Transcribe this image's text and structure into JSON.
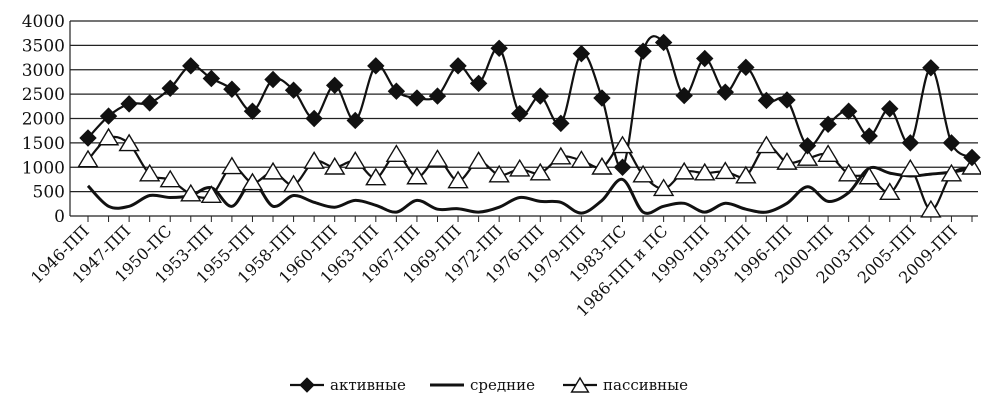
{
  "chart_data": {
    "type": "line",
    "title": "",
    "xlabel": "",
    "ylabel": "",
    "ylim": [
      0,
      4000
    ],
    "yticks": [
      0,
      500,
      1000,
      1500,
      2000,
      2500,
      3000,
      3500,
      4000
    ],
    "grid": "horizontal",
    "legend_position": "bottom",
    "tick_labels": [
      "1946-ПП",
      "1947-ПП",
      "1950-ПС",
      "1953-ПП",
      "1955-ПП",
      "1958-ПП",
      "1960-ПП",
      "1963-ПП",
      "1967-ПП",
      "1969-ПП",
      "1972-ПП",
      "1976-ПП",
      "1979-ПП",
      "1983-ПС",
      "1986-ПП и ПС",
      "1990-ПП",
      "1993-ПП",
      "1996-ПП",
      "2000-ПП",
      "2003-ПП",
      "2005-ПП",
      "2009-ПП"
    ],
    "series": [
      {
        "name": "активные",
        "marker": "diamond",
        "color": "#111111",
        "values": [
          1600,
          2050,
          2300,
          2320,
          2620,
          3080,
          2820,
          2600,
          2150,
          2800,
          2580,
          2000,
          2680,
          1960,
          3080,
          2560,
          2420,
          2460,
          3080,
          2720,
          3440,
          2100,
          2460,
          1900,
          3330,
          2420,
          1000,
          3380,
          3560,
          2470,
          3230,
          2540,
          3050,
          2370,
          2380,
          1440,
          1880,
          2150,
          1640,
          2200,
          1500,
          3040,
          1500,
          1200
        ]
      },
      {
        "name": "средние",
        "marker": "none",
        "color": "#111111",
        "values": [
          620,
          200,
          200,
          420,
          380,
          420,
          580,
          200,
          700,
          200,
          420,
          280,
          180,
          320,
          220,
          80,
          320,
          140,
          150,
          80,
          180,
          380,
          300,
          280,
          60,
          320,
          750,
          80,
          200,
          260,
          80,
          260,
          140,
          80,
          260,
          600,
          300,
          480,
          980,
          880,
          820,
          860,
          900,
          980
        ]
      },
      {
        "name": "пассивные",
        "marker": "triangle",
        "color": "#111111",
        "values": [
          1150,
          1600,
          1480,
          860,
          740,
          450,
          420,
          1010,
          680,
          900,
          640,
          1120,
          1000,
          1120,
          780,
          1260,
          800,
          1160,
          720,
          1120,
          840,
          960,
          880,
          1210,
          1140,
          1000,
          1440,
          840,
          560,
          900,
          880,
          910,
          820,
          1440,
          1100,
          1180,
          1260,
          860,
          800,
          480,
          960,
          120,
          860,
          1000
        ]
      }
    ]
  }
}
